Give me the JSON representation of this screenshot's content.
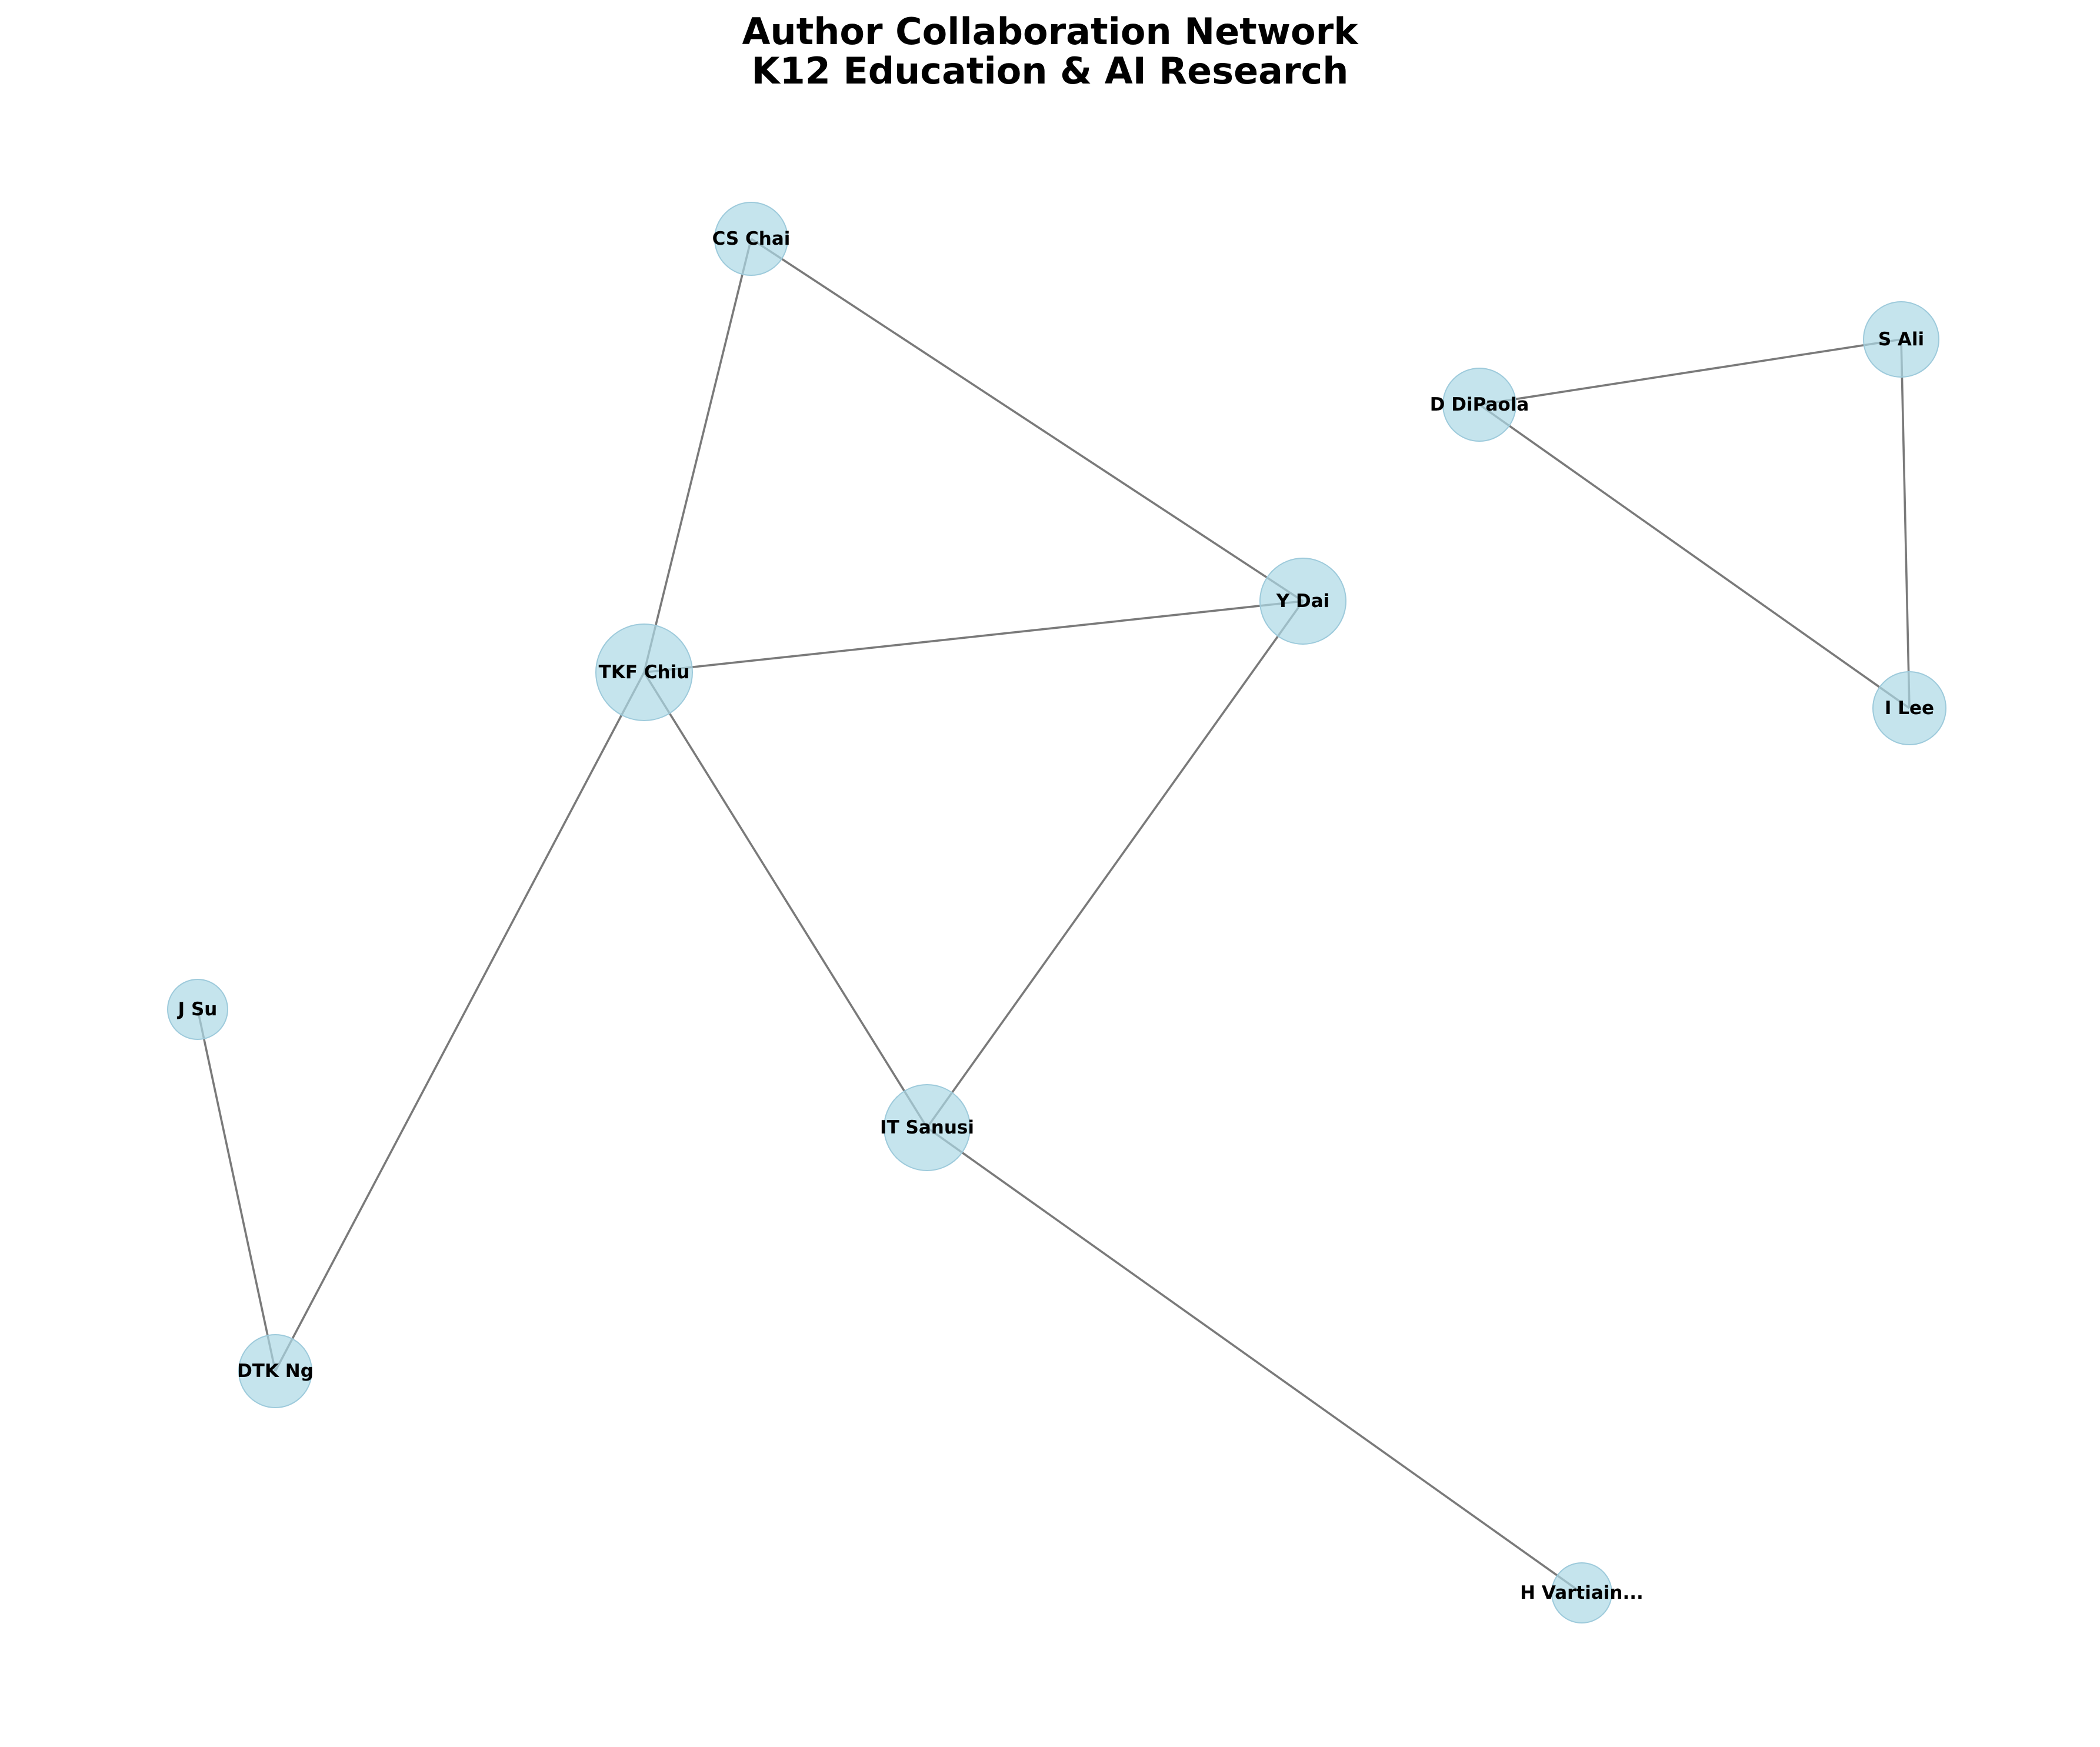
{
  "title": {
    "line1": "Author Collaboration Network",
    "line2": "K12 Education & AI Research"
  },
  "colors": {
    "node_fill": "#add8e6",
    "edge": "#7a7a7a",
    "label": "#000000"
  },
  "nodes": [
    {
      "id": "tkf",
      "label": "TKF Chiu"
    },
    {
      "id": "cs",
      "label": "CS Chai"
    },
    {
      "id": "ydai",
      "label": "Y Dai"
    },
    {
      "id": "its",
      "label": "IT Sanusi"
    },
    {
      "id": "dtk",
      "label": "DTK Ng"
    },
    {
      "id": "jsu",
      "label": "J Su"
    },
    {
      "id": "hv",
      "label": "H Vartiain..."
    },
    {
      "id": "dd",
      "label": "D DiPaola"
    },
    {
      "id": "sali",
      "label": "S Ali"
    },
    {
      "id": "ilee",
      "label": "I Lee"
    }
  ],
  "edges": [
    {
      "source": "cs",
      "target": "tkf"
    },
    {
      "source": "cs",
      "target": "ydai"
    },
    {
      "source": "tkf",
      "target": "ydai"
    },
    {
      "source": "tkf",
      "target": "its"
    },
    {
      "source": "tkf",
      "target": "dtk"
    },
    {
      "source": "ydai",
      "target": "its"
    },
    {
      "source": "its",
      "target": "hv"
    },
    {
      "source": "jsu",
      "target": "dtk"
    },
    {
      "source": "dd",
      "target": "sali"
    },
    {
      "source": "dd",
      "target": "ilee"
    },
    {
      "source": "sali",
      "target": "ilee"
    }
  ]
}
